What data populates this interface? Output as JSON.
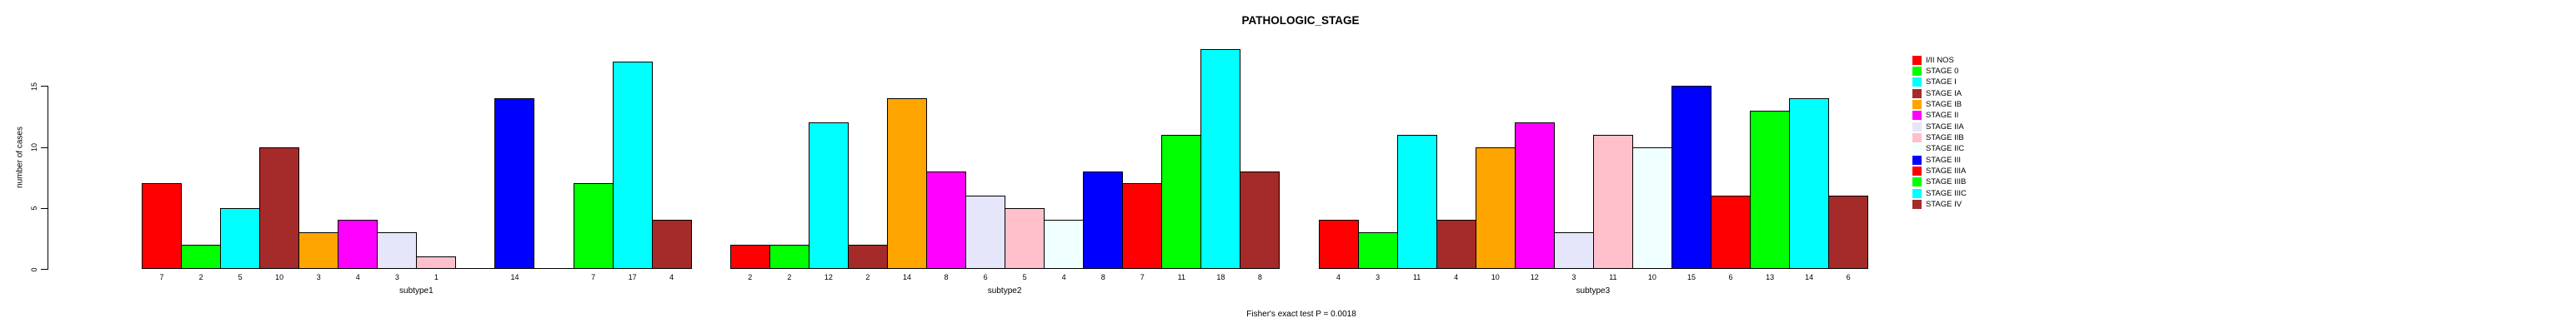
{
  "title": "PATHOLOGIC_STAGE",
  "y_axis": {
    "label": "number of cases",
    "ticks": [
      0,
      5,
      10,
      15
    ]
  },
  "footer": "Fisher's exact test P = 0.0018",
  "chart_data": {
    "type": "bar",
    "title": "PATHOLOGIC_STAGE",
    "xlabel": "",
    "ylabel": "number of cases",
    "ylim": [
      0,
      18
    ],
    "yticks": [
      0,
      5,
      10,
      15
    ],
    "grid": false,
    "legend_position": "right",
    "bar_value_labels": "shown under each bar; zero-count categories drawn as flat baseline segment with no label",
    "categories": [
      "I/II NOS",
      "STAGE 0",
      "STAGE I",
      "STAGE IA",
      "STAGE IB",
      "STAGE II",
      "STAGE IIA",
      "STAGE IIB",
      "STAGE IIC",
      "STAGE III",
      "STAGE IIIA",
      "STAGE IIIB",
      "STAGE IIIC",
      "STAGE IV"
    ],
    "palette": [
      "#FF0000",
      "#00FF00",
      "#00FFFF",
      "#A52A2A",
      "#FFA500",
      "#FF00FF",
      "#E6E6FA",
      "#FFC0CB",
      "#F0FFFF",
      "#0000FF",
      "#FF0000",
      "#00FF00",
      "#00FFFF",
      "#A52A2A"
    ],
    "groups": [
      {
        "label": "subtype1",
        "values": [
          7,
          2,
          5,
          10,
          3,
          4,
          3,
          1,
          0,
          14,
          0,
          7,
          17,
          4
        ]
      },
      {
        "label": "subtype2",
        "values": [
          2,
          2,
          12,
          2,
          14,
          8,
          6,
          5,
          4,
          8,
          7,
          11,
          18,
          8
        ]
      },
      {
        "label": "subtype3",
        "values": [
          4,
          3,
          11,
          4,
          10,
          12,
          3,
          11,
          10,
          15,
          6,
          13,
          14,
          6
        ]
      }
    ],
    "annotation": "Fisher's exact test P = 0.0018"
  }
}
